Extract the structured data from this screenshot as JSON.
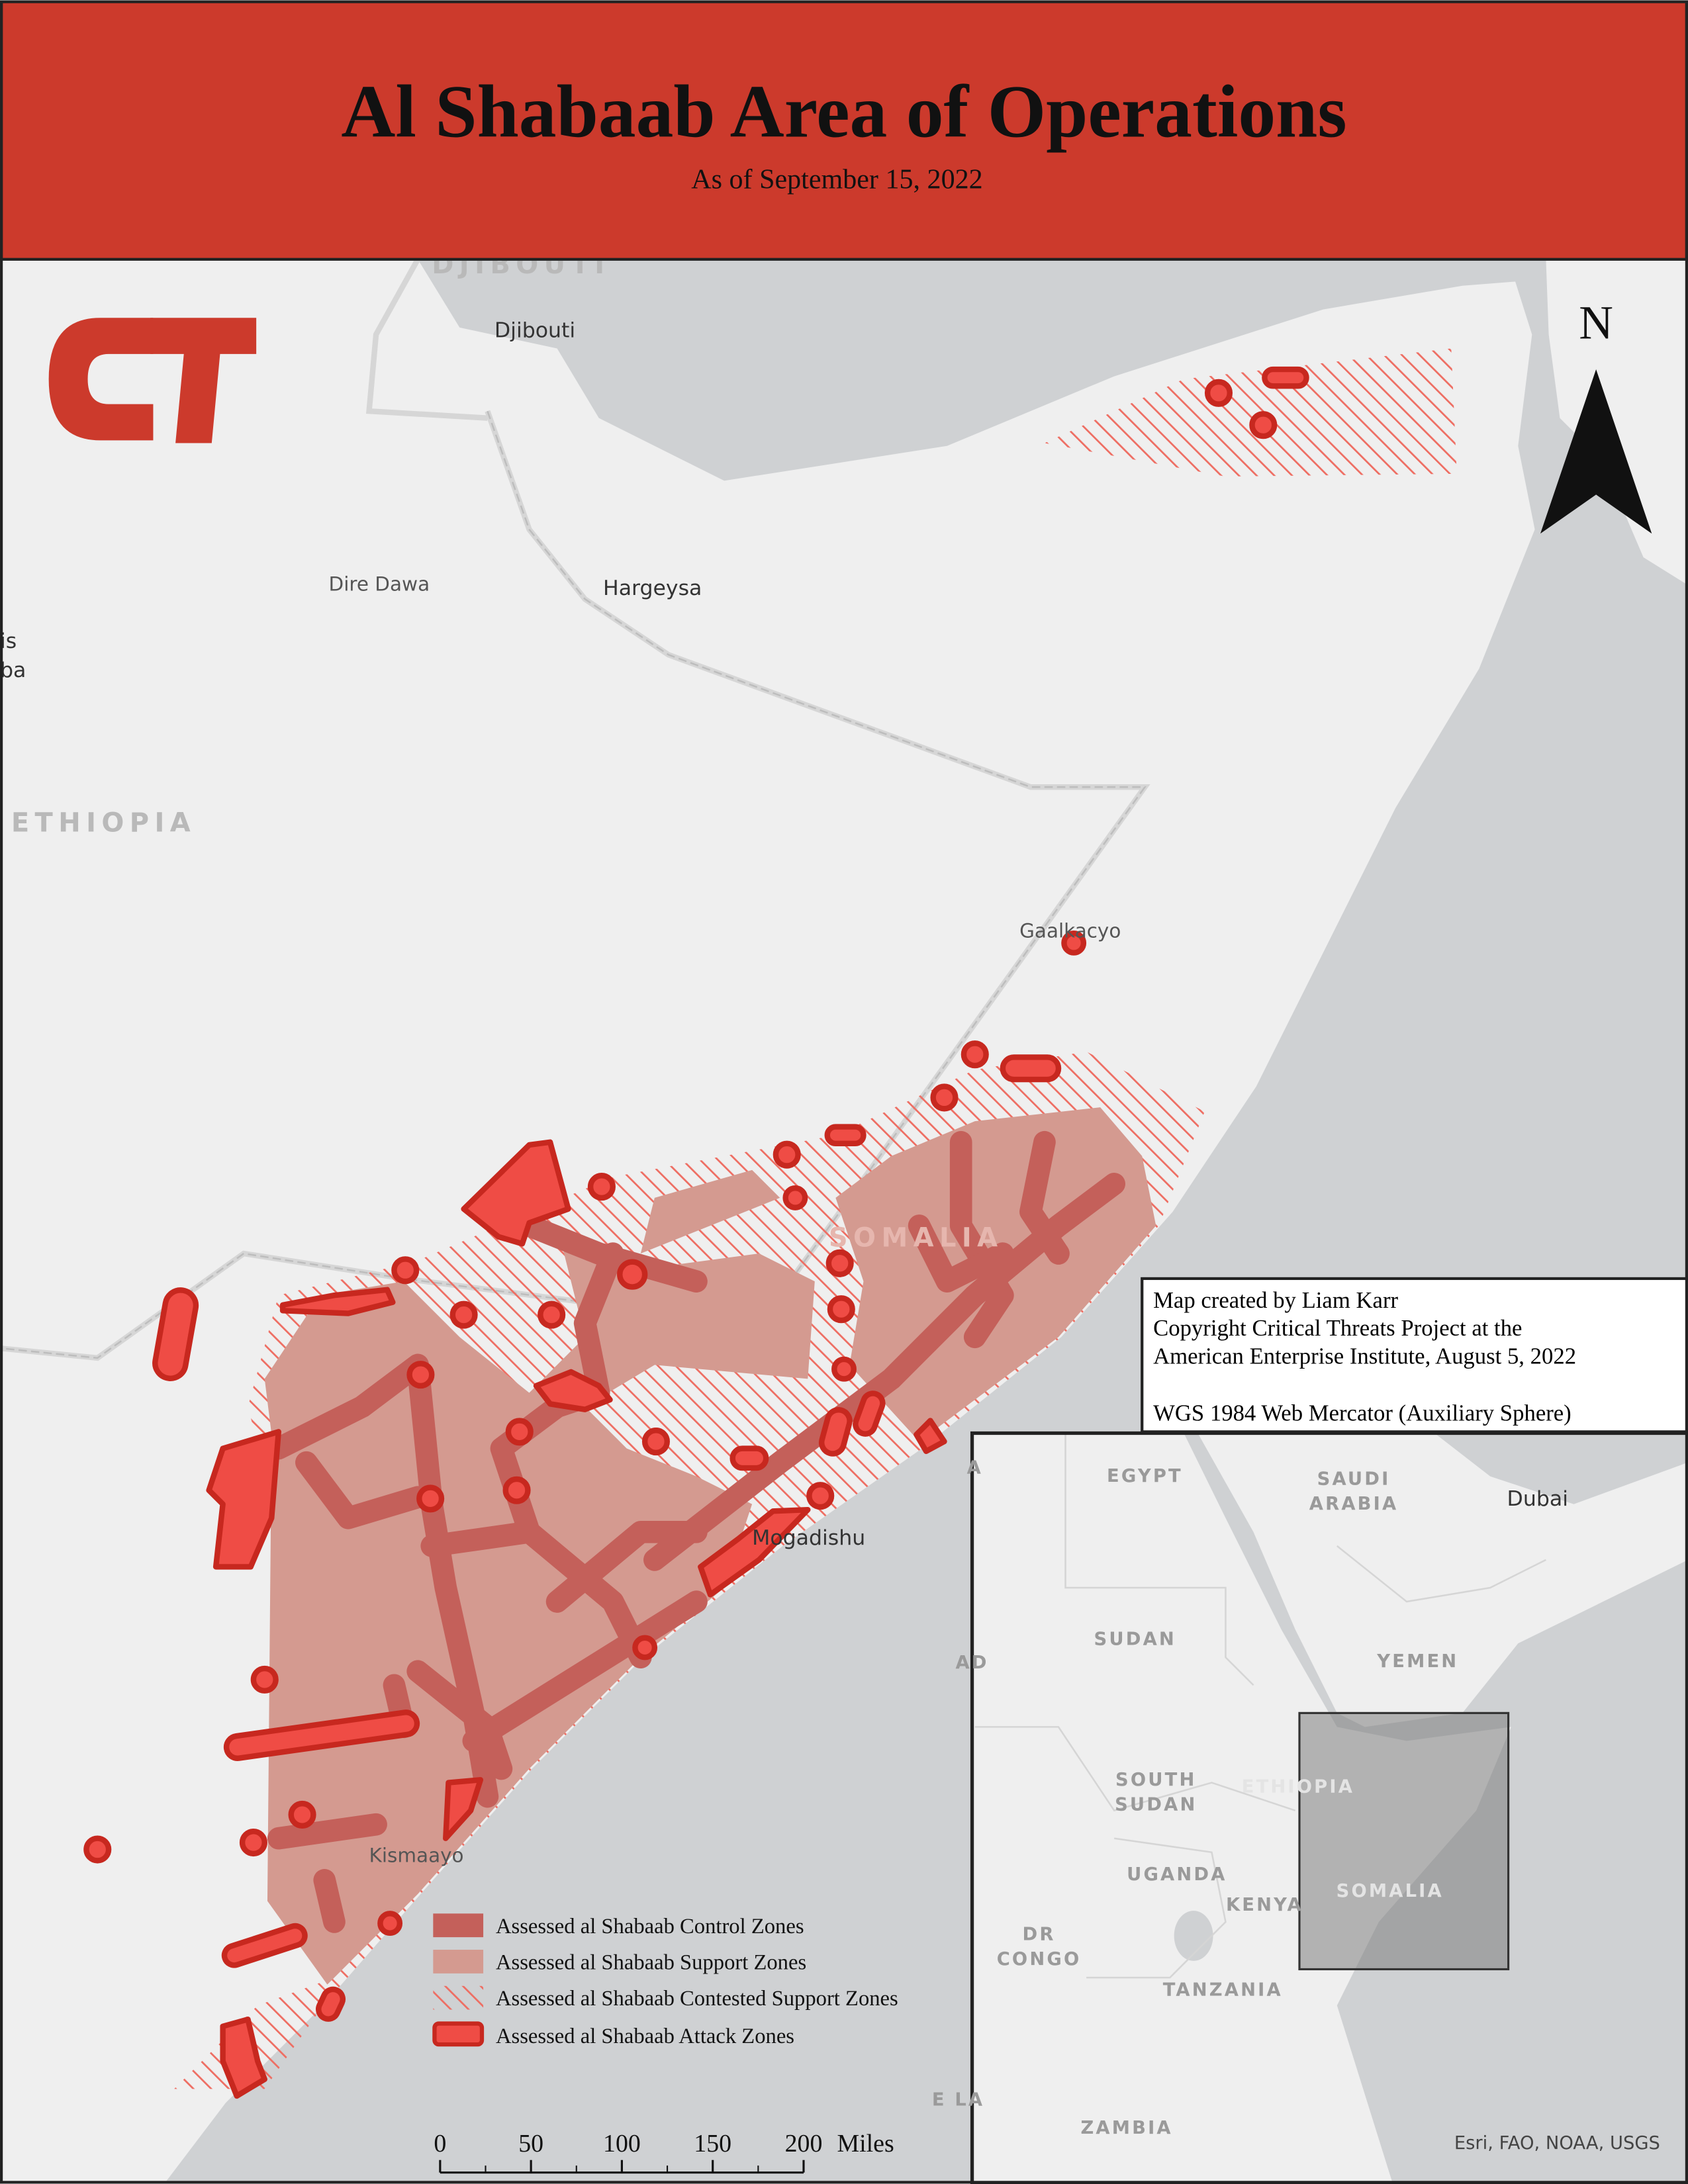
{
  "header": {
    "title": "Al Shabaab Area of Operations",
    "subtitle": "As of September 15, 2022"
  },
  "map_labels": {
    "countries": [
      "DJIBOUTI",
      "ETHIOPIA",
      "SOMALIA"
    ],
    "cities": [
      "Djibouti",
      "Dire Dawa",
      "Hargeysa",
      "Gaalkacyo",
      "Mogadishu",
      "Kismaayo"
    ],
    "cut_off": [
      "is",
      "ba"
    ]
  },
  "north_arrow": "N",
  "credits": [
    "Map created by Liam Karr",
    "Copyright Critical Threats Project at the",
    "American Enterprise Institute, August 5, 2022",
    "WGS 1984 Web Mercator (Auxiliary Sphere)"
  ],
  "legend": [
    "Assessed al Shabaab Control Zones",
    "Assessed al Shabaab Support Zones",
    "Assessed al Shabaab Contested Support Zones",
    "Assessed al Shabaab Attack Zones"
  ],
  "inset": {
    "labels": [
      [
        "EGYPT"
      ],
      [
        "SAUDI",
        "ARABIA"
      ],
      [
        "Dubai"
      ],
      [
        "SUDAN"
      ],
      [
        "YEMEN"
      ],
      [
        "SOUTH",
        "SUDAN"
      ],
      [
        "ETHIOPIA"
      ],
      [
        "UGANDA"
      ],
      [
        "KENYA"
      ],
      [
        "SOMALIA"
      ],
      [
        "DR",
        "CONGO"
      ],
      [
        "TANZANIA"
      ],
      [
        "ZAMBIA"
      ],
      [
        "A"
      ],
      [
        "AD"
      ],
      [
        "E LA"
      ]
    ]
  },
  "scale_bar": {
    "ticks": [
      0,
      50,
      100,
      150,
      200
    ],
    "unit": "Miles"
  },
  "attribution": "Esri, FAO, NOAA, USGS"
}
